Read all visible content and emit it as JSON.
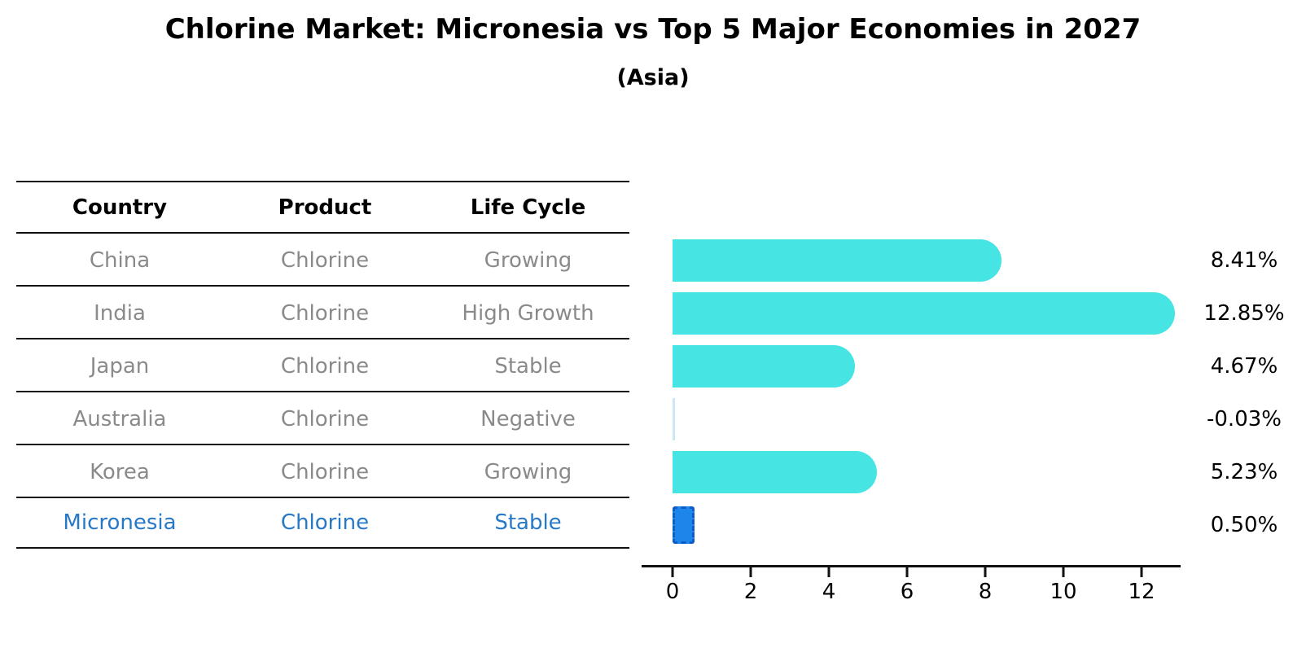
{
  "chart_data": {
    "type": "bar",
    "orientation": "horizontal",
    "title": "Chlorine Market: Micronesia vs Top 5 Major Economies in 2027",
    "subtitle": "(Asia)",
    "categories": [
      "China",
      "India",
      "Japan",
      "Australia",
      "Korea",
      "Micronesia"
    ],
    "values": [
      8.41,
      12.85,
      4.67,
      -0.03,
      5.23,
      0.5
    ],
    "value_labels": [
      "8.41%",
      "12.85%",
      "4.67%",
      "-0.03%",
      "5.23%",
      "0.50%"
    ],
    "x_ticks": [
      0,
      2,
      4,
      6,
      8,
      10,
      12
    ],
    "xlim": [
      -0.8,
      13.0
    ],
    "grid": false,
    "legend": "none",
    "bar_color": "#47E4E4",
    "negative_bar_color": "#9fd6ec",
    "highlight": {
      "index": 5,
      "fill": "#1E86E8",
      "border": "#0D5BC6"
    },
    "value_label_color": "#000000",
    "axis_color": "#111111"
  },
  "table": {
    "headers": [
      "Country",
      "Product",
      "Life Cycle"
    ],
    "rows": [
      {
        "country": "China",
        "product": "Chlorine",
        "life_cycle": "Growing",
        "highlight": false
      },
      {
        "country": "India",
        "product": "Chlorine",
        "life_cycle": "High Growth",
        "highlight": false
      },
      {
        "country": "Japan",
        "product": "Chlorine",
        "life_cycle": "Stable",
        "highlight": false
      },
      {
        "country": "Australia",
        "product": "Chlorine",
        "life_cycle": "Negative",
        "highlight": false
      },
      {
        "country": "Korea",
        "product": "Chlorine",
        "life_cycle": "Growing",
        "highlight": false
      },
      {
        "country": "Micronesia",
        "product": "Chlorine",
        "life_cycle": "Stable",
        "highlight": true
      }
    ],
    "highlight_text_color": "#2878c8",
    "body_text_color": "#8a8a8a"
  }
}
